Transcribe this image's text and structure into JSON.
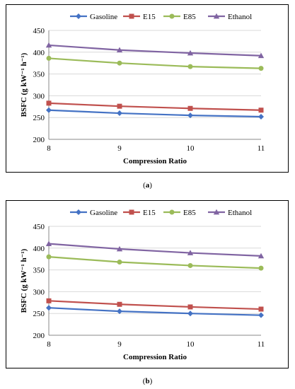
{
  "figure": {
    "captions": [
      {
        "open": "(",
        "letter": "a",
        "close": ")"
      },
      {
        "open": "(",
        "letter": "b",
        "close": ")"
      }
    ]
  },
  "chart_data": [
    {
      "type": "line",
      "title": "",
      "xlabel": "Compression Ratio",
      "ylabel": "BSFC (g kW⁻¹ h⁻¹)",
      "x": [
        8,
        9,
        10,
        11
      ],
      "xlim": [
        8,
        11
      ],
      "ylim": [
        200,
        450
      ],
      "yticks": [
        200,
        250,
        300,
        350,
        400,
        450
      ],
      "xticks": [
        8,
        9,
        10,
        11
      ],
      "grid": "horizontal",
      "legend": "top",
      "series": [
        {
          "name": "Gasoline",
          "color": "#4472C4",
          "marker": "diamond",
          "values": [
            267,
            260,
            255,
            252
          ]
        },
        {
          "name": "E15",
          "color": "#C0504D",
          "marker": "square",
          "values": [
            283,
            276,
            271,
            267
          ]
        },
        {
          "name": "E85",
          "color": "#9BBB59",
          "marker": "circle",
          "values": [
            386,
            375,
            367,
            363
          ]
        },
        {
          "name": "Ethanol",
          "color": "#8064A2",
          "marker": "triangle",
          "values": [
            416,
            405,
            398,
            392
          ]
        }
      ]
    },
    {
      "type": "line",
      "title": "",
      "xlabel": "Compression Ratio",
      "ylabel": "BSFC (g kW⁻¹ h⁻¹)",
      "x": [
        8,
        9,
        10,
        11
      ],
      "xlim": [
        8,
        11
      ],
      "ylim": [
        200,
        450
      ],
      "yticks": [
        200,
        250,
        300,
        350,
        400,
        450
      ],
      "xticks": [
        8,
        9,
        10,
        11
      ],
      "grid": "horizontal",
      "legend": "top",
      "series": [
        {
          "name": "Gasoline",
          "color": "#4472C4",
          "marker": "diamond",
          "values": [
            263,
            255,
            250,
            246
          ]
        },
        {
          "name": "E15",
          "color": "#C0504D",
          "marker": "square",
          "values": [
            279,
            271,
            265,
            260
          ]
        },
        {
          "name": "E85",
          "color": "#9BBB59",
          "marker": "circle",
          "values": [
            380,
            368,
            360,
            354
          ]
        },
        {
          "name": "Ethanol",
          "color": "#8064A2",
          "marker": "triangle",
          "values": [
            410,
            398,
            389,
            382
          ]
        }
      ]
    }
  ]
}
